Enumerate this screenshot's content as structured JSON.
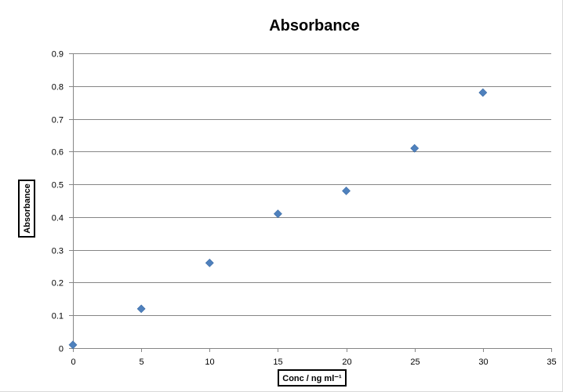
{
  "chart_data": {
    "type": "scatter",
    "title": "Absorbance",
    "xlabel": "Conc / ng ml⁻¹",
    "ylabel": "Absorbance",
    "xlim": [
      0,
      35
    ],
    "ylim": [
      0,
      0.9
    ],
    "x_ticks": [
      "0",
      "5",
      "10",
      "15",
      "20",
      "25",
      "30",
      "35"
    ],
    "y_ticks": [
      "0",
      "0.1",
      "0.2",
      "0.3",
      "0.4",
      "0.5",
      "0.6",
      "0.7",
      "0.8",
      "0.9"
    ],
    "grid": true,
    "legend": "none",
    "marker": "diamond",
    "marker_color": "#4F81BD",
    "series": [
      {
        "x": [
          0,
          5,
          10,
          15,
          20,
          25,
          30
        ],
        "y": [
          0.01,
          0.12,
          0.26,
          0.41,
          0.48,
          0.61,
          0.78
        ]
      }
    ]
  }
}
